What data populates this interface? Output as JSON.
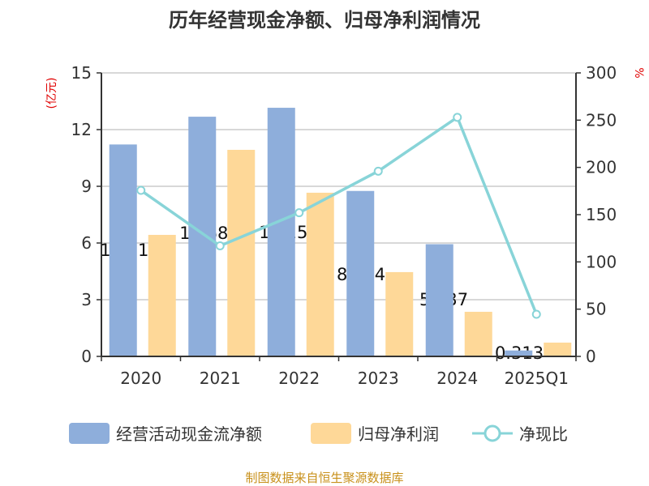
{
  "chart_data": {
    "type": "bar",
    "title": "历年经营现金净额、归母净利润情况",
    "categories": [
      "2020",
      "2021",
      "2022",
      "2023",
      "2024",
      "2025Q1"
    ],
    "series": [
      {
        "name": "经营活动现金流净额",
        "type": "bar",
        "axis": "left",
        "color": "#8eaedb",
        "values": [
          11.213,
          12.682,
          13.155,
          8.754,
          5.937,
          0.313
        ],
        "labels": [
          "11.213",
          "12.682",
          "13.155",
          "8.754",
          "5.937",
          "0.313"
        ]
      },
      {
        "name": "归母净利润",
        "type": "bar",
        "axis": "left",
        "color": "#fed898",
        "values": [
          6.43,
          10.93,
          8.66,
          4.46,
          2.36,
          0.73
        ]
      },
      {
        "name": "净现比",
        "type": "line",
        "axis": "right",
        "color": "#88d4d8",
        "values": [
          175.7,
          117,
          152,
          196,
          253,
          44.6
        ]
      }
    ],
    "yleft": {
      "label": "(亿元)",
      "ylim": [
        0,
        15
      ],
      "ticks": [
        "0",
        "3",
        "6",
        "9",
        "12",
        "15"
      ]
    },
    "yright": {
      "label": "%",
      "ylim": [
        0,
        300
      ],
      "ticks": [
        "0",
        "50",
        "100",
        "150",
        "200",
        "250",
        "300"
      ]
    },
    "grid": true,
    "legend": "bottom",
    "source": "制图数据来自恒生聚源数据库"
  }
}
